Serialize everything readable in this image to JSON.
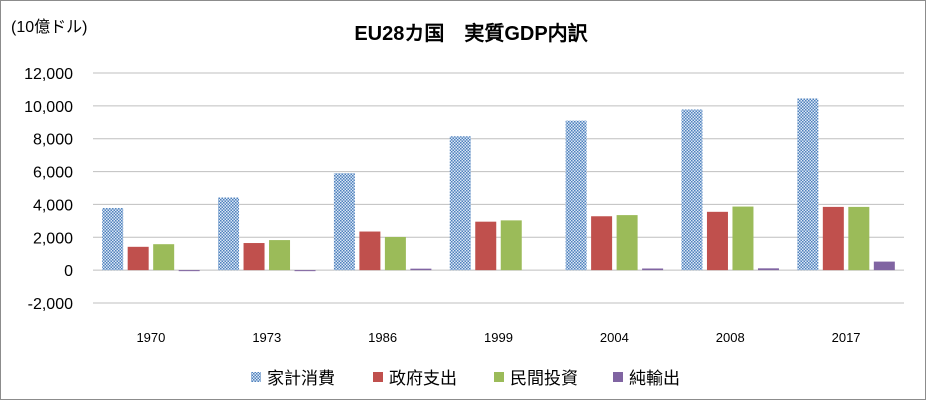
{
  "chart_data": {
    "type": "bar",
    "title": "EU28カ国　実質GDP内訳",
    "unit_label": "(10億ドル)",
    "categories": [
      "1970",
      "1973",
      "1986",
      "1999",
      "2004",
      "2008",
      "2017"
    ],
    "series": [
      {
        "name": "家計消費",
        "color": "#4f81bd",
        "pattern": "dotted",
        "values": [
          3780,
          4420,
          5900,
          8150,
          9100,
          9780,
          10450
        ]
      },
      {
        "name": "政府支出",
        "color": "#c0504d",
        "values": [
          1420,
          1650,
          2350,
          2950,
          3280,
          3550,
          3850
        ]
      },
      {
        "name": "民間投資",
        "color": "#9bbb59",
        "values": [
          1580,
          1830,
          2020,
          3030,
          3350,
          3870,
          3850
        ]
      },
      {
        "name": "純輸出",
        "color": "#8064a2",
        "values": [
          -60,
          -60,
          90,
          0,
          100,
          110,
          520
        ]
      }
    ],
    "yticks": [
      "12,000",
      "10,000",
      "8,000",
      "6,000",
      "4,000",
      "2,000",
      "0",
      "-2,000"
    ],
    "ylim": [
      -2000,
      12000
    ],
    "grid": true,
    "legend_position": "bottom"
  }
}
